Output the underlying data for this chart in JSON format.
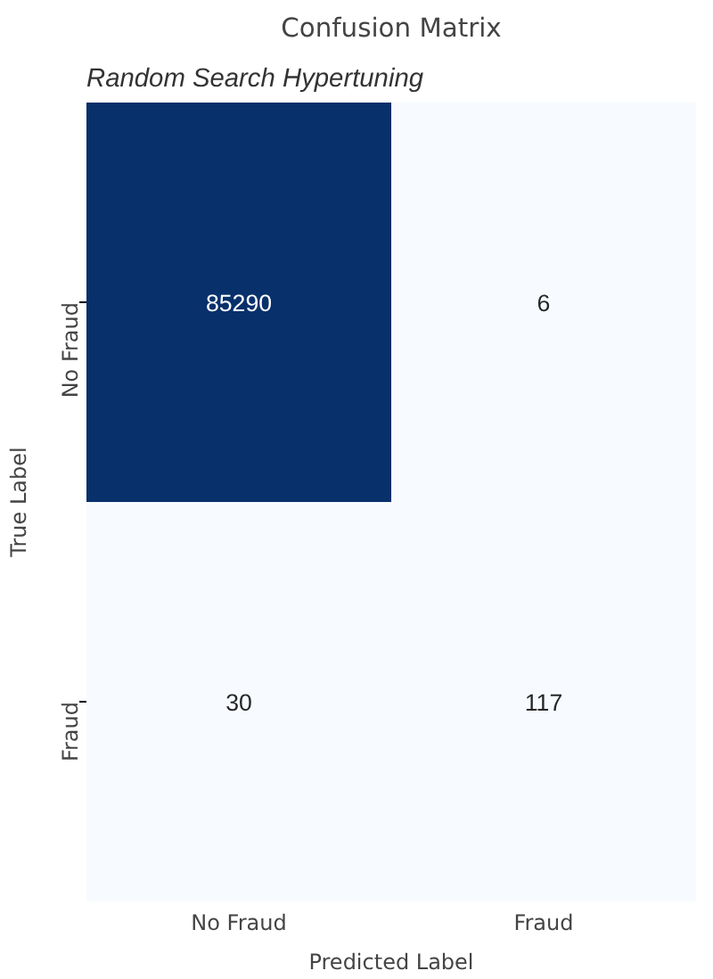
{
  "chart_data": {
    "type": "heatmap",
    "title": "Confusion Matrix",
    "annotations": [
      "Random Search Hypertuning"
    ],
    "xlabel": "Predicted Label",
    "ylabel": "True Label",
    "categories": [
      "No Fraud",
      "Fraud"
    ],
    "y_categories": [
      "No Fraud",
      "Fraud"
    ],
    "cells": [
      [
        85290,
        6
      ],
      [
        30,
        117
      ]
    ],
    "data_labels": true
  }
}
